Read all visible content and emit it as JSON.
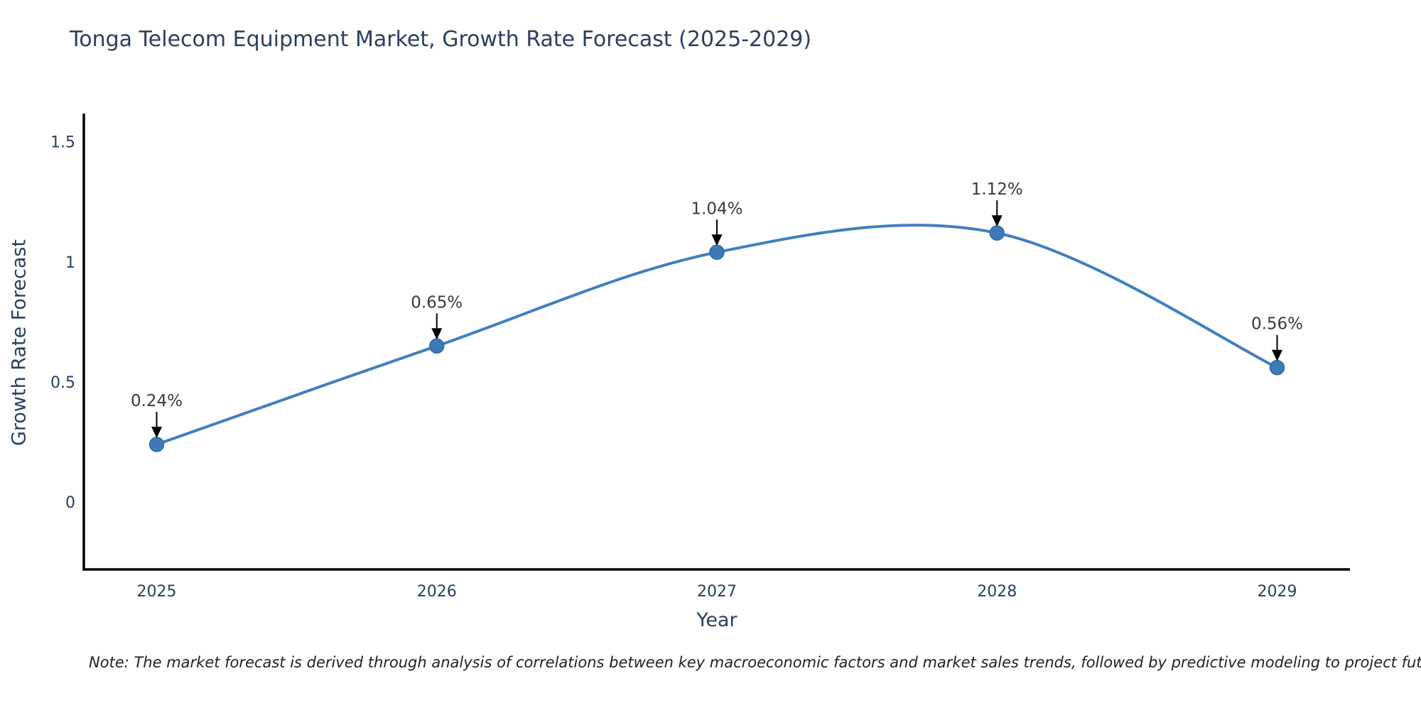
{
  "title": "Tonga Telecom Equipment Market, Growth Rate Forecast (2025-2029)",
  "note": "Note: The market forecast is derived through analysis of correlations between key macroeconomic factors and market sales trends, followed by predictive modeling to project future sales",
  "chart_data": {
    "type": "line",
    "title": "Tonga Telecom Equipment Market, Growth Rate Forecast (2025-2029)",
    "xlabel": "Year",
    "ylabel": "Growth Rate Forecast",
    "x": [
      2025,
      2026,
      2027,
      2028,
      2029
    ],
    "x_labels": [
      "2025",
      "2026",
      "2027",
      "2028",
      "2029"
    ],
    "values": [
      0.24,
      0.65,
      1.04,
      1.12,
      0.56
    ],
    "point_labels": [
      "0.24%",
      "0.65%",
      "1.04%",
      "1.12%",
      "0.56%"
    ],
    "yticks": [
      0,
      0.5,
      1,
      1.5
    ],
    "ytick_labels": [
      "0",
      "0.5",
      "1",
      "1.5"
    ],
    "ylim": [
      -0.28,
      1.617
    ],
    "xlim": [
      2024.74,
      2029.26
    ],
    "grid": false,
    "legend": "none",
    "line_shape": "spline",
    "colors": {
      "line": "#4080bd",
      "marker_fill": "#3c7ab8",
      "marker_edge": "#2f6ba8",
      "axis": "#000000",
      "tick_text": "#2a3f5f",
      "title_text": "#2a3f5f",
      "annotation_text": "#3a3a3a",
      "annotation_arrow": "#000000",
      "background": "#ffffff"
    }
  }
}
